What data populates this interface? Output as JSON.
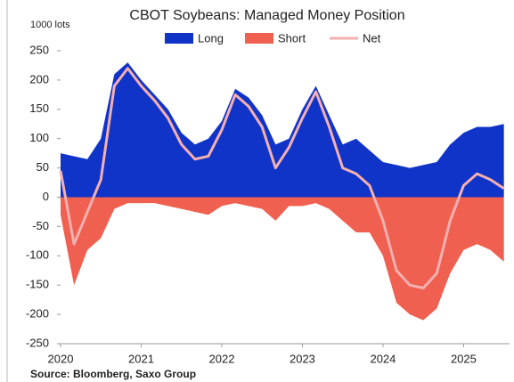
{
  "chart_data": {
    "type": "area",
    "title": "CBOT Soybeans: Managed Money Position",
    "y_label": "1000 lots",
    "source": "Source: Bloomberg, Saxo Group",
    "x": [
      2020.0,
      2020.167,
      2020.333,
      2020.5,
      2020.667,
      2020.833,
      2021.0,
      2021.167,
      2021.333,
      2021.5,
      2021.667,
      2021.833,
      2022.0,
      2022.167,
      2022.333,
      2022.5,
      2022.667,
      2022.833,
      2023.0,
      2023.167,
      2023.333,
      2023.5,
      2023.667,
      2023.833,
      2024.0,
      2024.167,
      2024.333,
      2024.5,
      2024.667,
      2024.833,
      2025.0,
      2025.167,
      2025.333,
      2025.5
    ],
    "series": [
      {
        "name": "Long",
        "color": "#1033c8",
        "kind": "area",
        "values": [
          75,
          70,
          65,
          100,
          210,
          230,
          200,
          175,
          150,
          110,
          90,
          100,
          130,
          185,
          170,
          140,
          90,
          100,
          150,
          190,
          140,
          90,
          100,
          80,
          60,
          55,
          50,
          55,
          60,
          90,
          110,
          120,
          120,
          125
        ]
      },
      {
        "name": "Short",
        "color": "#f06050",
        "kind": "area",
        "values": [
          -30,
          -150,
          -90,
          -70,
          -20,
          -10,
          -10,
          -10,
          -15,
          -20,
          -25,
          -30,
          -15,
          -10,
          -15,
          -20,
          -40,
          -15,
          -15,
          -10,
          -20,
          -40,
          -60,
          -60,
          -100,
          -180,
          -200,
          -210,
          -190,
          -130,
          -90,
          -80,
          -90,
          -110
        ]
      },
      {
        "name": "Net",
        "color": "#f4b0b0",
        "kind": "line",
        "values": [
          45,
          -80,
          -25,
          30,
          190,
          220,
          190,
          165,
          135,
          90,
          65,
          70,
          115,
          175,
          155,
          120,
          50,
          85,
          135,
          180,
          120,
          50,
          40,
          20,
          -40,
          -125,
          -150,
          -155,
          -130,
          -40,
          20,
          40,
          30,
          15
        ]
      }
    ],
    "xlim": [
      2020,
      2025.57
    ],
    "xticks": [
      2020,
      2021,
      2022,
      2023,
      2024,
      2025
    ],
    "ylim": [
      -250,
      250
    ],
    "yticks": [
      -250,
      -200,
      -150,
      -100,
      -50,
      0,
      50,
      100,
      150,
      200,
      250
    ],
    "grid": false
  }
}
